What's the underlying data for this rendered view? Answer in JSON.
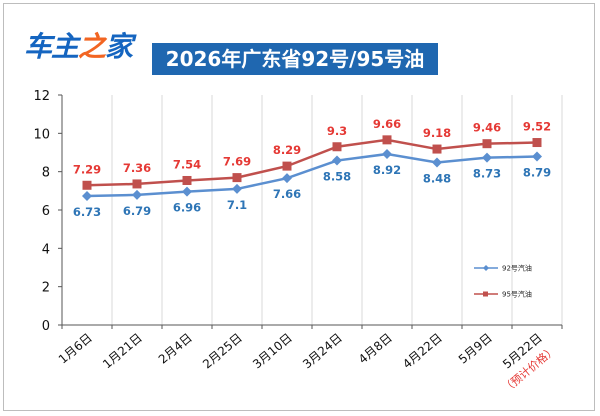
{
  "logo": {
    "part1": "车主",
    "part2": "之",
    "part3": "家"
  },
  "chart_data": {
    "type": "line",
    "title": "2026年广东省92号/95号油",
    "categories": [
      "1月6日",
      "1月21日",
      "2月4日",
      "2月25日",
      "3月10日",
      "3月24日",
      "4月8日",
      "4月22日",
      "5月9日",
      "5月22日"
    ],
    "note": "（预计价格）",
    "ylim": [
      0,
      12
    ],
    "yticks": [
      0,
      2,
      4,
      6,
      8,
      10,
      12
    ],
    "grid": "vertical",
    "legend_position": "right",
    "series": [
      {
        "name": "92号汽油",
        "color": "#5b8fd0",
        "label_color": "#2e75b6",
        "marker": "diamond",
        "values": [
          6.73,
          6.79,
          6.96,
          7.1,
          7.66,
          8.58,
          8.92,
          8.48,
          8.73,
          8.79
        ]
      },
      {
        "name": "95号汽油",
        "color": "#c0504d",
        "label_color": "#e53935",
        "marker": "square",
        "values": [
          7.29,
          7.36,
          7.54,
          7.69,
          8.29,
          9.3,
          9.66,
          9.18,
          9.46,
          9.52
        ]
      }
    ]
  }
}
